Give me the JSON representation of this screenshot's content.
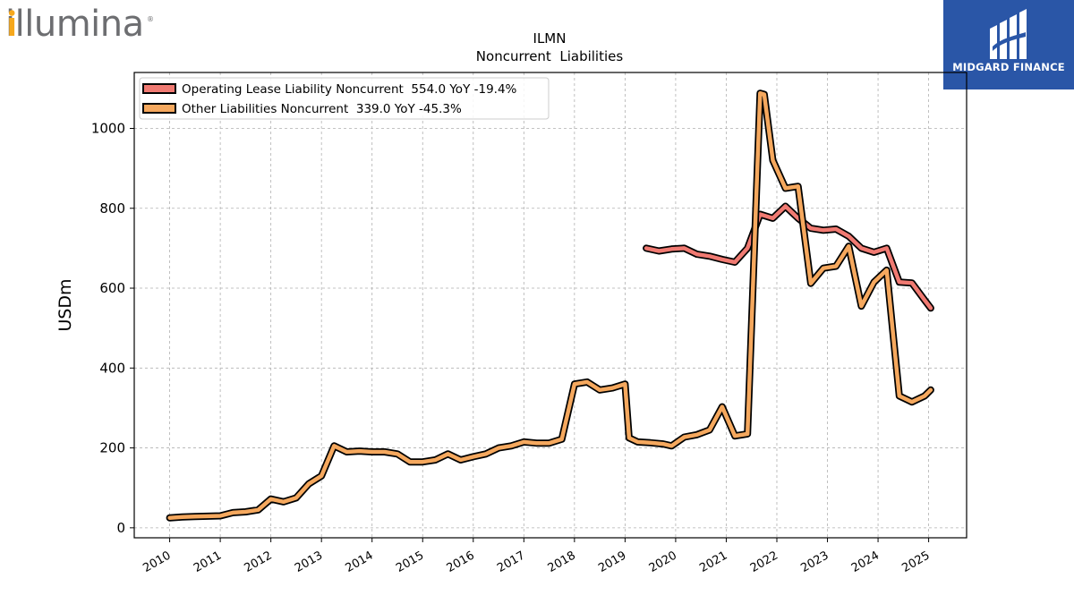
{
  "logos": {
    "left": {
      "name": "illumina",
      "primary_color": "#6d6e71",
      "accent_color": "#f6a81c"
    },
    "right": {
      "name": "MIDGARD FINANCE",
      "bg_color": "#2a56a7"
    }
  },
  "chart_data": {
    "type": "line",
    "title": "ILMN",
    "subtitle": "Noncurrent  Liabilities",
    "xlabel": "",
    "ylabel": "USDm",
    "xlim": [
      2009.3,
      2025.75
    ],
    "ylim": [
      -25,
      1140
    ],
    "yticks": [
      0,
      200,
      400,
      600,
      800,
      1000
    ],
    "xticks": [
      "2010",
      "2011",
      "2012",
      "2013",
      "2014",
      "2015",
      "2016",
      "2017",
      "2018",
      "2019",
      "2020",
      "2021",
      "2022",
      "2023",
      "2024",
      "2025"
    ],
    "grid": true,
    "legend_position": "top-left",
    "series": [
      {
        "name": "Operating Lease Liability Noncurrent  554.0 YoY -19.4%",
        "color": "#f07a72",
        "x": [
          2019.42,
          2019.67,
          2019.92,
          2020.17,
          2020.42,
          2020.67,
          2020.92,
          2021.17,
          2021.42,
          2021.67,
          2021.92,
          2022.17,
          2022.42,
          2022.67,
          2022.92,
          2023.17,
          2023.42,
          2023.67,
          2023.92,
          2024.17,
          2024.42,
          2024.67,
          2024.92,
          2025.04
        ],
        "values": [
          700,
          693,
          698,
          700,
          685,
          680,
          672,
          665,
          700,
          785,
          775,
          805,
          775,
          750,
          745,
          748,
          730,
          700,
          690,
          700,
          615,
          613,
          570,
          550
        ]
      },
      {
        "name": "Other Liabilities Noncurrent  339.0 YoY -45.3%",
        "color": "#f5a85e",
        "x": [
          2010,
          2010.25,
          2010.5,
          2010.75,
          2011,
          2011.25,
          2011.5,
          2011.75,
          2012,
          2012.25,
          2012.5,
          2012.75,
          2013,
          2013.25,
          2013.5,
          2013.75,
          2014,
          2014.25,
          2014.5,
          2014.75,
          2015,
          2015.25,
          2015.5,
          2015.75,
          2016,
          2016.25,
          2016.5,
          2016.75,
          2017,
          2017.25,
          2017.5,
          2017.75,
          2018,
          2018.25,
          2018.5,
          2018.75,
          2019,
          2019.08,
          2019.25,
          2019.5,
          2019.75,
          2019.92,
          2020.17,
          2020.42,
          2020.67,
          2020.92,
          2021.17,
          2021.42,
          2021.67,
          2021.75,
          2021.92,
          2022.17,
          2022.42,
          2022.67,
          2022.92,
          2023.17,
          2023.42,
          2023.67,
          2023.92,
          2024.17,
          2024.42,
          2024.67,
          2024.92,
          2025.04
        ],
        "values": [
          25,
          27,
          28,
          29,
          30,
          38,
          40,
          45,
          72,
          65,
          75,
          110,
          130,
          205,
          190,
          192,
          190,
          190,
          185,
          165,
          165,
          170,
          185,
          170,
          178,
          185,
          200,
          205,
          215,
          212,
          212,
          222,
          360,
          365,
          345,
          350,
          360,
          225,
          215,
          213,
          210,
          205,
          227,
          233,
          245,
          303,
          230,
          235,
          1088,
          1085,
          920,
          850,
          855,
          612,
          650,
          655,
          705,
          555,
          615,
          645,
          330,
          315,
          330,
          345
        ]
      }
    ]
  }
}
